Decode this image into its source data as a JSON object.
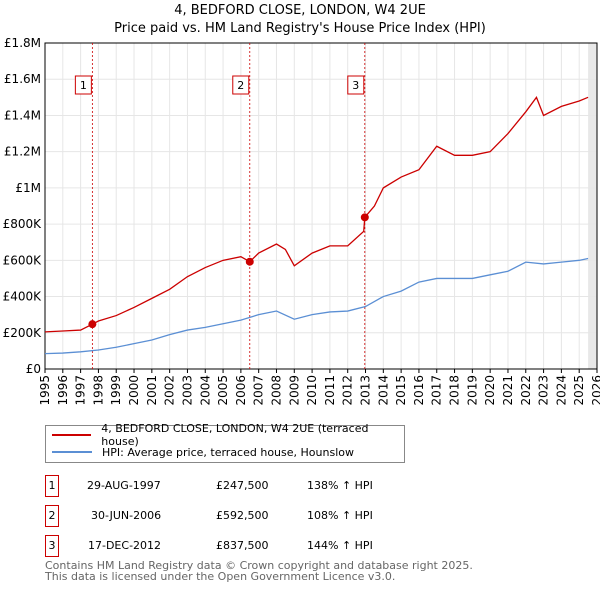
{
  "title": "4, BEDFORD CLOSE, LONDON, W4 2UE",
  "subtitle": "Price paid vs. HM Land Registry's House Price Index (HPI)",
  "chart_data": {
    "type": "line",
    "xlim": [
      1995,
      2026
    ],
    "ylim": [
      0,
      1800000
    ],
    "yticks": [
      0,
      200000,
      400000,
      600000,
      800000,
      1000000,
      1200000,
      1400000,
      1600000,
      1800000
    ],
    "ytick_labels": [
      "£0",
      "£200K",
      "£400K",
      "£600K",
      "£800K",
      "£1M",
      "£1.2M",
      "£1.4M",
      "£1.6M",
      "£1.8M"
    ],
    "xticks": [
      1995,
      1996,
      1997,
      1998,
      1999,
      2000,
      2001,
      2002,
      2003,
      2004,
      2005,
      2006,
      2007,
      2008,
      2009,
      2010,
      2011,
      2012,
      2013,
      2014,
      2015,
      2016,
      2017,
      2018,
      2019,
      2020,
      2021,
      2022,
      2023,
      2024,
      2025,
      2026
    ],
    "series": [
      {
        "name": "4, BEDFORD CLOSE, LONDON, W4 2UE (terraced house)",
        "color": "#cc0000",
        "x": [
          1995,
          1996,
          1997,
          1997.66,
          1998,
          1999,
          2000,
          2001,
          2002,
          2003,
          2004,
          2005,
          2006,
          2006.5,
          2007,
          2008,
          2008.5,
          2009,
          2010,
          2011,
          2012,
          2012.9,
          2012.96,
          2013.5,
          2014,
          2015,
          2016,
          2017,
          2018,
          2019,
          2020,
          2021,
          2022,
          2022.6,
          2023,
          2024,
          2025,
          2025.5
        ],
        "y": [
          205000,
          210000,
          215000,
          247500,
          265000,
          295000,
          340000,
          390000,
          440000,
          510000,
          560000,
          600000,
          620000,
          592500,
          640000,
          690000,
          660000,
          570000,
          640000,
          680000,
          680000,
          760000,
          837500,
          900000,
          1000000,
          1060000,
          1100000,
          1230000,
          1180000,
          1180000,
          1200000,
          1300000,
          1420000,
          1500000,
          1400000,
          1450000,
          1480000,
          1500000
        ]
      },
      {
        "name": "HPI: Average price, terraced house, Hounslow",
        "color": "#5b8fd4",
        "x": [
          1995,
          1996,
          1997,
          1998,
          1999,
          2000,
          2001,
          2002,
          2003,
          2004,
          2005,
          2006,
          2007,
          2008,
          2009,
          2010,
          2011,
          2012,
          2013,
          2014,
          2015,
          2016,
          2017,
          2018,
          2019,
          2020,
          2021,
          2022,
          2023,
          2024,
          2025,
          2025.5
        ],
        "y": [
          85000,
          88000,
          95000,
          105000,
          120000,
          140000,
          160000,
          190000,
          215000,
          230000,
          250000,
          270000,
          300000,
          320000,
          275000,
          300000,
          315000,
          320000,
          345000,
          400000,
          430000,
          480000,
          500000,
          500000,
          500000,
          520000,
          540000,
          590000,
          580000,
          590000,
          600000,
          610000
        ]
      }
    ],
    "sales": [
      {
        "label": "1",
        "x": 1997.66,
        "y": 247500
      },
      {
        "label": "2",
        "x": 2006.5,
        "y": 592500
      },
      {
        "label": "3",
        "x": 2012.96,
        "y": 837500
      }
    ]
  },
  "legend": [
    "4, BEDFORD CLOSE, LONDON, W4 2UE (terraced house)",
    "HPI: Average price, terraced house, Hounslow"
  ],
  "transactions": [
    {
      "num": "1",
      "date": "29-AUG-1997",
      "price": "£247,500",
      "hpi": "138% ↑ HPI"
    },
    {
      "num": "2",
      "date": "30-JUN-2006",
      "price": "£592,500",
      "hpi": "108% ↑ HPI"
    },
    {
      "num": "3",
      "date": "17-DEC-2012",
      "price": "£837,500",
      "hpi": "144% ↑ HPI"
    }
  ],
  "footer": [
    "Contains HM Land Registry data © Crown copyright and database right 2025.",
    "This data is licensed under the Open Government Licence v3.0."
  ]
}
